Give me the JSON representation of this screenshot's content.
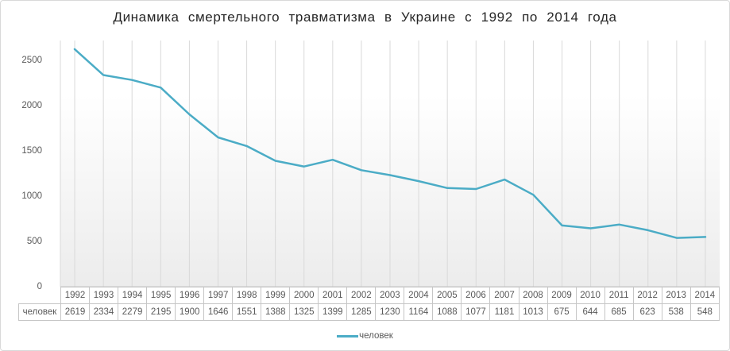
{
  "chart_data": {
    "type": "line",
    "title": "Динамика смертельного травматизма в Украине с 1992 по 2014 года",
    "categories": [
      "1992",
      "1993",
      "1994",
      "1995",
      "1996",
      "1997",
      "1998",
      "1999",
      "2000",
      "2001",
      "2002",
      "2003",
      "2004",
      "2005",
      "2006",
      "2007",
      "2008",
      "2009",
      "2010",
      "2011",
      "2012",
      "2013",
      "2014"
    ],
    "series": [
      {
        "name": "человек",
        "values": [
          2619,
          2334,
          2279,
          2195,
          1900,
          1646,
          1551,
          1388,
          1325,
          1399,
          1285,
          1230,
          1164,
          1088,
          1077,
          1181,
          1013,
          675,
          644,
          685,
          623,
          538,
          548
        ]
      }
    ],
    "row_label": "человек",
    "yticks": [
      0,
      500,
      1000,
      1500,
      2000,
      2500
    ],
    "ylim": [
      0,
      2500
    ],
    "grid": "vertical-gridlines-per-category",
    "legend_position": "bottom",
    "data_table_shown": true
  },
  "colors": {
    "line": "#4BACC6",
    "text": "#595959",
    "title_text": "#262626",
    "gridline": "#D9D9D9",
    "axis_line": "#C6C6C6",
    "table_border": "#C6C6C6",
    "frame_border": "#D9D9D9",
    "plot_fill_top": "#FFFFFF",
    "plot_fill_bottom": "#ECECEC"
  }
}
